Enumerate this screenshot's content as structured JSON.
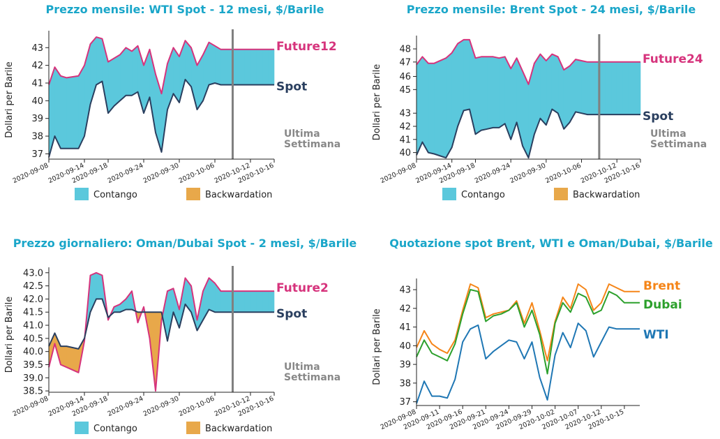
{
  "colors": {
    "title": "#1aa6c9",
    "future": "#d6337c",
    "spot": "#2a3f5f",
    "contango": "#5bc8dc",
    "backwardation": "#e8a84a",
    "marker": "#808080",
    "brent": "#f58518",
    "dubai": "#2ca02c",
    "wti": "#1f77b4"
  },
  "chart_data": [
    {
      "type": "area",
      "title": "Prezzo mensile: WTI Spot - 12 mesi, $/Barile",
      "ylabel": "Dollari per Barile",
      "ylim": [
        36.7,
        43.8
      ],
      "yticks": [
        37,
        38,
        39,
        40,
        41,
        42,
        43
      ],
      "xlim": [
        0,
        38
      ],
      "xticks": [
        {
          "i": 0,
          "label": "2020-09-08"
        },
        {
          "i": 6,
          "label": "2020-09-14"
        },
        {
          "i": 10,
          "label": "2020-09-18"
        },
        {
          "i": 16,
          "label": "2020-09-24"
        },
        {
          "i": 22,
          "label": "2020-09-30"
        },
        {
          "i": 28,
          "label": "2020-10-06"
        },
        {
          "i": 34,
          "label": "2020-10-12"
        },
        {
          "i": 38,
          "label": "2020-10-16"
        }
      ],
      "x": [
        0,
        1,
        2,
        3,
        5,
        6,
        7,
        8,
        9,
        10,
        11,
        12,
        13,
        14,
        15,
        16,
        17,
        18,
        19,
        20,
        21,
        22,
        23,
        24,
        25,
        26,
        27,
        28,
        29,
        30,
        31,
        32,
        33,
        34,
        35,
        36,
        37,
        38
      ],
      "spot": [
        36.8,
        38.0,
        37.3,
        37.3,
        37.3,
        38.0,
        39.8,
        40.9,
        41.1,
        39.3,
        39.7,
        40.0,
        40.3,
        40.3,
        40.5,
        39.3,
        40.2,
        38.2,
        37.1,
        39.5,
        40.4,
        39.9,
        41.2,
        40.8,
        39.5,
        40.0,
        40.9,
        41.0,
        40.9,
        40.9,
        40.9,
        40.9,
        40.9,
        40.9,
        40.9,
        40.9,
        40.9,
        40.9
      ],
      "future": [
        40.9,
        41.9,
        41.4,
        41.3,
        41.4,
        42.0,
        43.2,
        43.6,
        43.5,
        42.2,
        42.4,
        42.6,
        43.0,
        42.8,
        43.1,
        42.0,
        42.9,
        41.5,
        40.4,
        42.1,
        43.0,
        42.5,
        43.4,
        43.0,
        42.0,
        42.6,
        43.3,
        43.1,
        42.9,
        42.9,
        42.9,
        42.9,
        42.9,
        42.9,
        42.9,
        42.9,
        42.9,
        42.9
      ],
      "marker_x": 31,
      "future_label": "Future12",
      "spot_label": "Spot",
      "week_label_1": "Ultima",
      "week_label_2": "Settimana",
      "legend": [
        "Contango",
        "Backwardation"
      ]
    },
    {
      "type": "area",
      "title": "Prezzo mensile: Brent Spot - 24 mesi, $/Barile",
      "ylabel": "Dollari per Barile",
      "ylim": [
        39.5,
        48.7
      ],
      "yticks": [
        40,
        41,
        42,
        43,
        45,
        46,
        47,
        48
      ],
      "ytick_pos": [
        40,
        41,
        42,
        43,
        44.8,
        45.8,
        46.9,
        47.9
      ],
      "xlim": [
        0,
        38
      ],
      "xticks": [
        {
          "i": 0,
          "label": "2020-09-08"
        },
        {
          "i": 6,
          "label": "2020-09-14"
        },
        {
          "i": 10,
          "label": "2020-09-18"
        },
        {
          "i": 16,
          "label": "2020-09-24"
        },
        {
          "i": 22,
          "label": "2020-09-30"
        },
        {
          "i": 28,
          "label": "2020-10-06"
        },
        {
          "i": 34,
          "label": "2020-10-12"
        },
        {
          "i": 38,
          "label": "2020-10-16"
        }
      ],
      "x": [
        0,
        1,
        2,
        3,
        5,
        6,
        7,
        8,
        9,
        10,
        11,
        12,
        13,
        14,
        15,
        16,
        17,
        18,
        19,
        20,
        21,
        22,
        23,
        24,
        25,
        26,
        27,
        28,
        29,
        30,
        31,
        32,
        33,
        34,
        35,
        36,
        37,
        38
      ],
      "spot": [
        39.8,
        40.8,
        40.0,
        39.9,
        39.6,
        40.4,
        42.0,
        43.2,
        43.3,
        41.4,
        41.7,
        41.8,
        41.9,
        41.9,
        42.2,
        41.0,
        42.3,
        40.5,
        39.6,
        41.4,
        42.6,
        42.1,
        43.3,
        43.0,
        41.8,
        42.3,
        43.1,
        43.0,
        42.9,
        42.9,
        42.9,
        42.9,
        42.9,
        42.9,
        42.9,
        42.9,
        42.9,
        42.9
      ],
      "future": [
        46.7,
        47.3,
        46.8,
        46.8,
        47.2,
        47.6,
        48.3,
        48.6,
        48.6,
        47.2,
        47.3,
        47.3,
        47.3,
        47.2,
        47.3,
        46.4,
        47.2,
        46.2,
        45.2,
        46.8,
        47.5,
        47.0,
        47.5,
        47.3,
        46.3,
        46.6,
        47.1,
        47.0,
        46.9,
        46.9,
        46.9,
        46.9,
        46.9,
        46.9,
        46.9,
        46.9,
        46.9,
        46.9
      ],
      "marker_x": 31,
      "future_label": "Future24",
      "spot_label": "Spot",
      "week_label_1": "Ultima",
      "week_label_2": "Settimana",
      "legend": [
        "Contango",
        "Backwardation"
      ]
    },
    {
      "type": "area",
      "title": "Prezzo giornaliero: Oman/Dubai Spot - 2 mesi, $/Barile",
      "ylabel": "Dollari per Barile",
      "ylim": [
        38.45,
        43.1
      ],
      "yticks": [
        38.5,
        39.0,
        39.5,
        40.0,
        40.5,
        41.0,
        41.5,
        42.0,
        42.5,
        43.0
      ],
      "xlim": [
        0,
        38
      ],
      "xticks": [
        {
          "i": 0,
          "label": "2020-09-08"
        },
        {
          "i": 6,
          "label": "2020-09-14"
        },
        {
          "i": 10,
          "label": "2020-09-18"
        },
        {
          "i": 16,
          "label": "2020-09-24"
        },
        {
          "i": 22,
          "label": "2020-09-30"
        },
        {
          "i": 28,
          "label": "2020-10-06"
        },
        {
          "i": 34,
          "label": "2020-10-12"
        },
        {
          "i": 38,
          "label": "2020-10-16"
        }
      ],
      "x": [
        0,
        1,
        2,
        3,
        5,
        6,
        7,
        8,
        9,
        10,
        11,
        12,
        13,
        14,
        15,
        16,
        17,
        18,
        19,
        20,
        21,
        22,
        23,
        24,
        25,
        26,
        27,
        28,
        29,
        30,
        31,
        32,
        33,
        34,
        35,
        36,
        37,
        38
      ],
      "spot": [
        40.2,
        40.7,
        40.2,
        40.2,
        40.1,
        40.5,
        41.5,
        42.0,
        42.0,
        41.3,
        41.5,
        41.5,
        41.6,
        41.6,
        41.5,
        41.5,
        41.5,
        41.5,
        41.5,
        40.4,
        41.5,
        40.9,
        41.8,
        41.5,
        40.8,
        41.2,
        41.6,
        41.5,
        41.5,
        41.5,
        41.5,
        41.5,
        41.5,
        41.5,
        41.5,
        41.5,
        41.5,
        41.5
      ],
      "future": [
        39.4,
        40.3,
        39.5,
        39.4,
        39.2,
        40.4,
        42.9,
        43.0,
        42.9,
        41.2,
        41.7,
        41.8,
        42.0,
        42.3,
        41.1,
        41.7,
        40.5,
        38.5,
        41.2,
        42.3,
        42.4,
        41.6,
        42.8,
        42.5,
        41.2,
        42.3,
        42.8,
        42.6,
        42.3,
        42.3,
        42.3,
        42.3,
        42.3,
        42.3,
        42.3,
        42.3,
        42.3,
        42.3
      ],
      "marker_x": 31,
      "future_label": "Future2",
      "spot_label": "Spot",
      "week_label_1": "Ultima",
      "week_label_2": "Settimana",
      "legend": [
        "Contango",
        "Backwardation"
      ]
    },
    {
      "type": "line",
      "title": "Quotazione spot Brent, WTI e Oman/Dubai, $/Barile",
      "ylabel": "Dollari per Barile",
      "ylim": [
        36.8,
        43.45
      ],
      "yticks": [
        37,
        38,
        39,
        40,
        41,
        42,
        43
      ],
      "xlim": [
        0,
        29
      ],
      "xticks": [
        {
          "i": 0,
          "label": "2020-09-08"
        },
        {
          "i": 3,
          "label": "2020-09-11"
        },
        {
          "i": 6,
          "label": "2020-09-16"
        },
        {
          "i": 9,
          "label": "2020-09-21"
        },
        {
          "i": 12,
          "label": "2020-09-24"
        },
        {
          "i": 15,
          "label": "2020-09-29"
        },
        {
          "i": 18,
          "label": "2020-10-02"
        },
        {
          "i": 21,
          "label": "2020-10-07"
        },
        {
          "i": 24,
          "label": "2020-10-12"
        },
        {
          "i": 27,
          "label": "2020-10-15"
        }
      ],
      "x": [
        0,
        1,
        2,
        3,
        4,
        5,
        6,
        7,
        8,
        9,
        10,
        11,
        12,
        13,
        14,
        15,
        16,
        17,
        18,
        19,
        20,
        21,
        22,
        23,
        24,
        25,
        26,
        27,
        28,
        29
      ],
      "series": [
        {
          "name": "Brent",
          "values": [
            39.9,
            40.8,
            40.1,
            39.8,
            39.6,
            40.3,
            41.9,
            43.3,
            43.1,
            41.5,
            41.7,
            41.8,
            41.9,
            42.4,
            41.2,
            42.3,
            40.8,
            39.2,
            41.3,
            42.6,
            42.0,
            43.3,
            43.0,
            41.9,
            42.3,
            43.3,
            43.1,
            42.9,
            42.9,
            42.9
          ]
        },
        {
          "name": "Dubai",
          "values": [
            39.4,
            40.3,
            39.6,
            39.4,
            39.2,
            40.1,
            41.7,
            43.0,
            42.9,
            41.3,
            41.6,
            41.7,
            41.9,
            42.3,
            41.0,
            41.9,
            40.6,
            38.5,
            41.2,
            42.3,
            41.8,
            42.8,
            42.6,
            41.7,
            41.9,
            42.9,
            42.7,
            42.3,
            42.3,
            42.3
          ]
        },
        {
          "name": "WTI",
          "values": [
            36.9,
            38.1,
            37.3,
            37.3,
            37.2,
            38.2,
            40.2,
            40.9,
            41.1,
            39.3,
            39.7,
            40.0,
            40.3,
            40.2,
            39.3,
            40.2,
            38.3,
            37.1,
            39.5,
            40.7,
            39.9,
            41.2,
            40.8,
            39.4,
            40.2,
            41.0,
            40.9,
            40.9,
            40.9,
            40.9
          ]
        }
      ]
    }
  ]
}
